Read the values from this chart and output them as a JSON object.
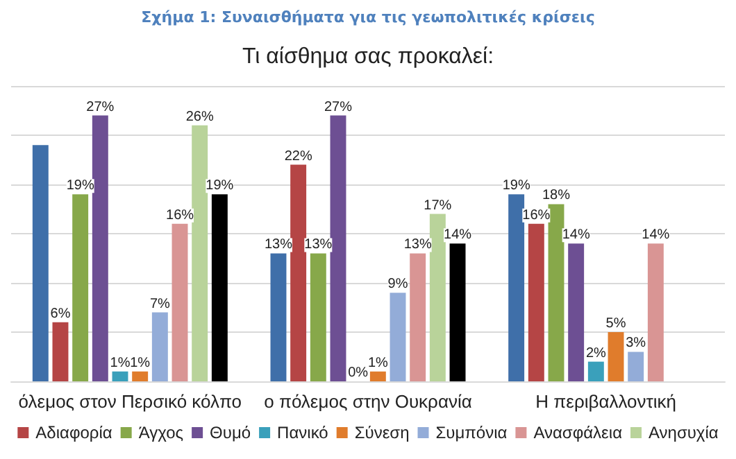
{
  "chart_data": {
    "type": "bar",
    "title": "Σχήμα 1: Συναισθήματα για τις γεωπολιτικές κρίσεις",
    "subtitle": "Τι αίσθημα σας προκαλεί:",
    "categories": [
      "όλεμος στον Περσικό κόλπο",
      "ο πόλεμος στην Ουκρανία",
      "Η περιβαλλοντική"
    ],
    "ylim": [
      0,
      30
    ],
    "yticks": [
      {
        "value": 0,
        "label": null
      },
      {
        "value": 5,
        "label": null
      },
      {
        "value": 10,
        "label": null
      },
      {
        "value": 15,
        "label": null
      },
      {
        "value": 20,
        "label": null
      },
      {
        "value": 25,
        "label": null
      },
      {
        "value": 30,
        "label": null
      }
    ],
    "grid": "y",
    "tick_labels": "x",
    "legend": "bottom",
    "series": [
      {
        "color": "#3f6fa9",
        "values": [
          24,
          13,
          19
        ],
        "value_labels": [
          null,
          "13%",
          "19%"
        ]
      },
      {
        "name": "Αδιαφορία",
        "color": "#b54545",
        "values": [
          6,
          22,
          16
        ],
        "value_labels": [
          "6%",
          "22%",
          "16%"
        ]
      },
      {
        "name": "Άγχος",
        "color": "#87a84a",
        "values": [
          19,
          13,
          18
        ],
        "value_labels": [
          "19%",
          "13%",
          "18%"
        ]
      },
      {
        "name": "Θυμό",
        "color": "#6d4f93",
        "values": [
          27,
          27,
          14
        ],
        "value_labels": [
          "27%",
          "27%",
          "14%"
        ]
      },
      {
        "name": "Πανικό",
        "color": "#3aa0bb",
        "values": [
          1,
          0,
          2
        ],
        "value_labels": [
          "1%",
          "0%",
          "2%"
        ]
      },
      {
        "name": "Σύνεση",
        "color": "#e07c2c",
        "values": [
          1,
          1,
          5
        ],
        "value_labels": [
          "1%",
          "1%",
          "5%"
        ]
      },
      {
        "name": "Συμπόνια",
        "color": "#93acd8",
        "values": [
          7,
          9,
          3
        ],
        "value_labels": [
          "7%",
          "9%",
          "3%"
        ]
      },
      {
        "name": "Ανασφάλεια",
        "color": "#d99594",
        "values": [
          16,
          13,
          14
        ],
        "value_labels": [
          "16%",
          "13%",
          "14%"
        ]
      },
      {
        "name": "Ανησυχία",
        "color": "#b9d39a",
        "values": [
          26,
          17,
          null
        ],
        "value_labels": [
          "26%",
          "17%",
          null
        ]
      },
      {
        "color": "#000000",
        "values": [
          19,
          14,
          null
        ],
        "value_labels": [
          "19%",
          "14%",
          null
        ]
      }
    ]
  }
}
